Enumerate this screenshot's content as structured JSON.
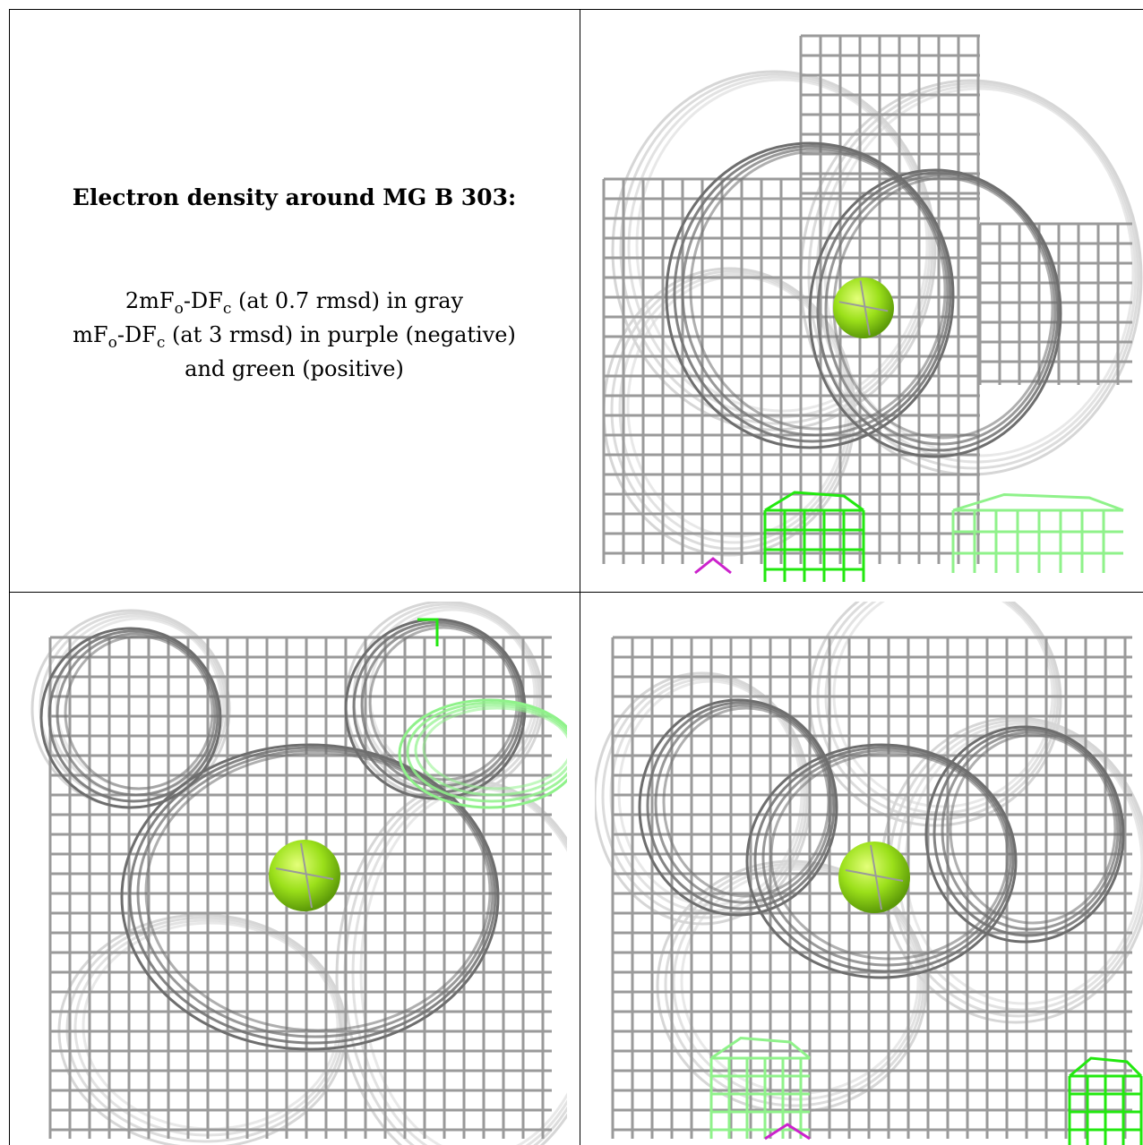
{
  "caption": {
    "title": "Electron density around MG B 303:",
    "line1": {
      "a": "2mF",
      "b": "o",
      "c": "-DF",
      "d": "c",
      "e": " (at 0.7 rmsd) in gray"
    },
    "line2": {
      "a": "mF",
      "b": "o",
      "c": "-DF",
      "d": "c",
      "e": " (at 3 rmsd) in purple (negative)"
    },
    "line3": "and green (positive)"
  },
  "colors": {
    "mesh_gray": "#9a9a9a",
    "mesh_dark": "#6e6e6e",
    "mesh_light": "#d6d6d6",
    "positive_green": "#22e80f",
    "positive_green_light": "#8ff28a",
    "negative_purple": "#cc22cc",
    "atom_green": "#9be01a"
  },
  "panels": [
    {
      "name": "view-top-right",
      "atom": "MG B 303"
    },
    {
      "name": "view-bottom-left",
      "atom": "MG B 303"
    },
    {
      "name": "view-bottom-right",
      "atom": "MG B 303"
    }
  ]
}
